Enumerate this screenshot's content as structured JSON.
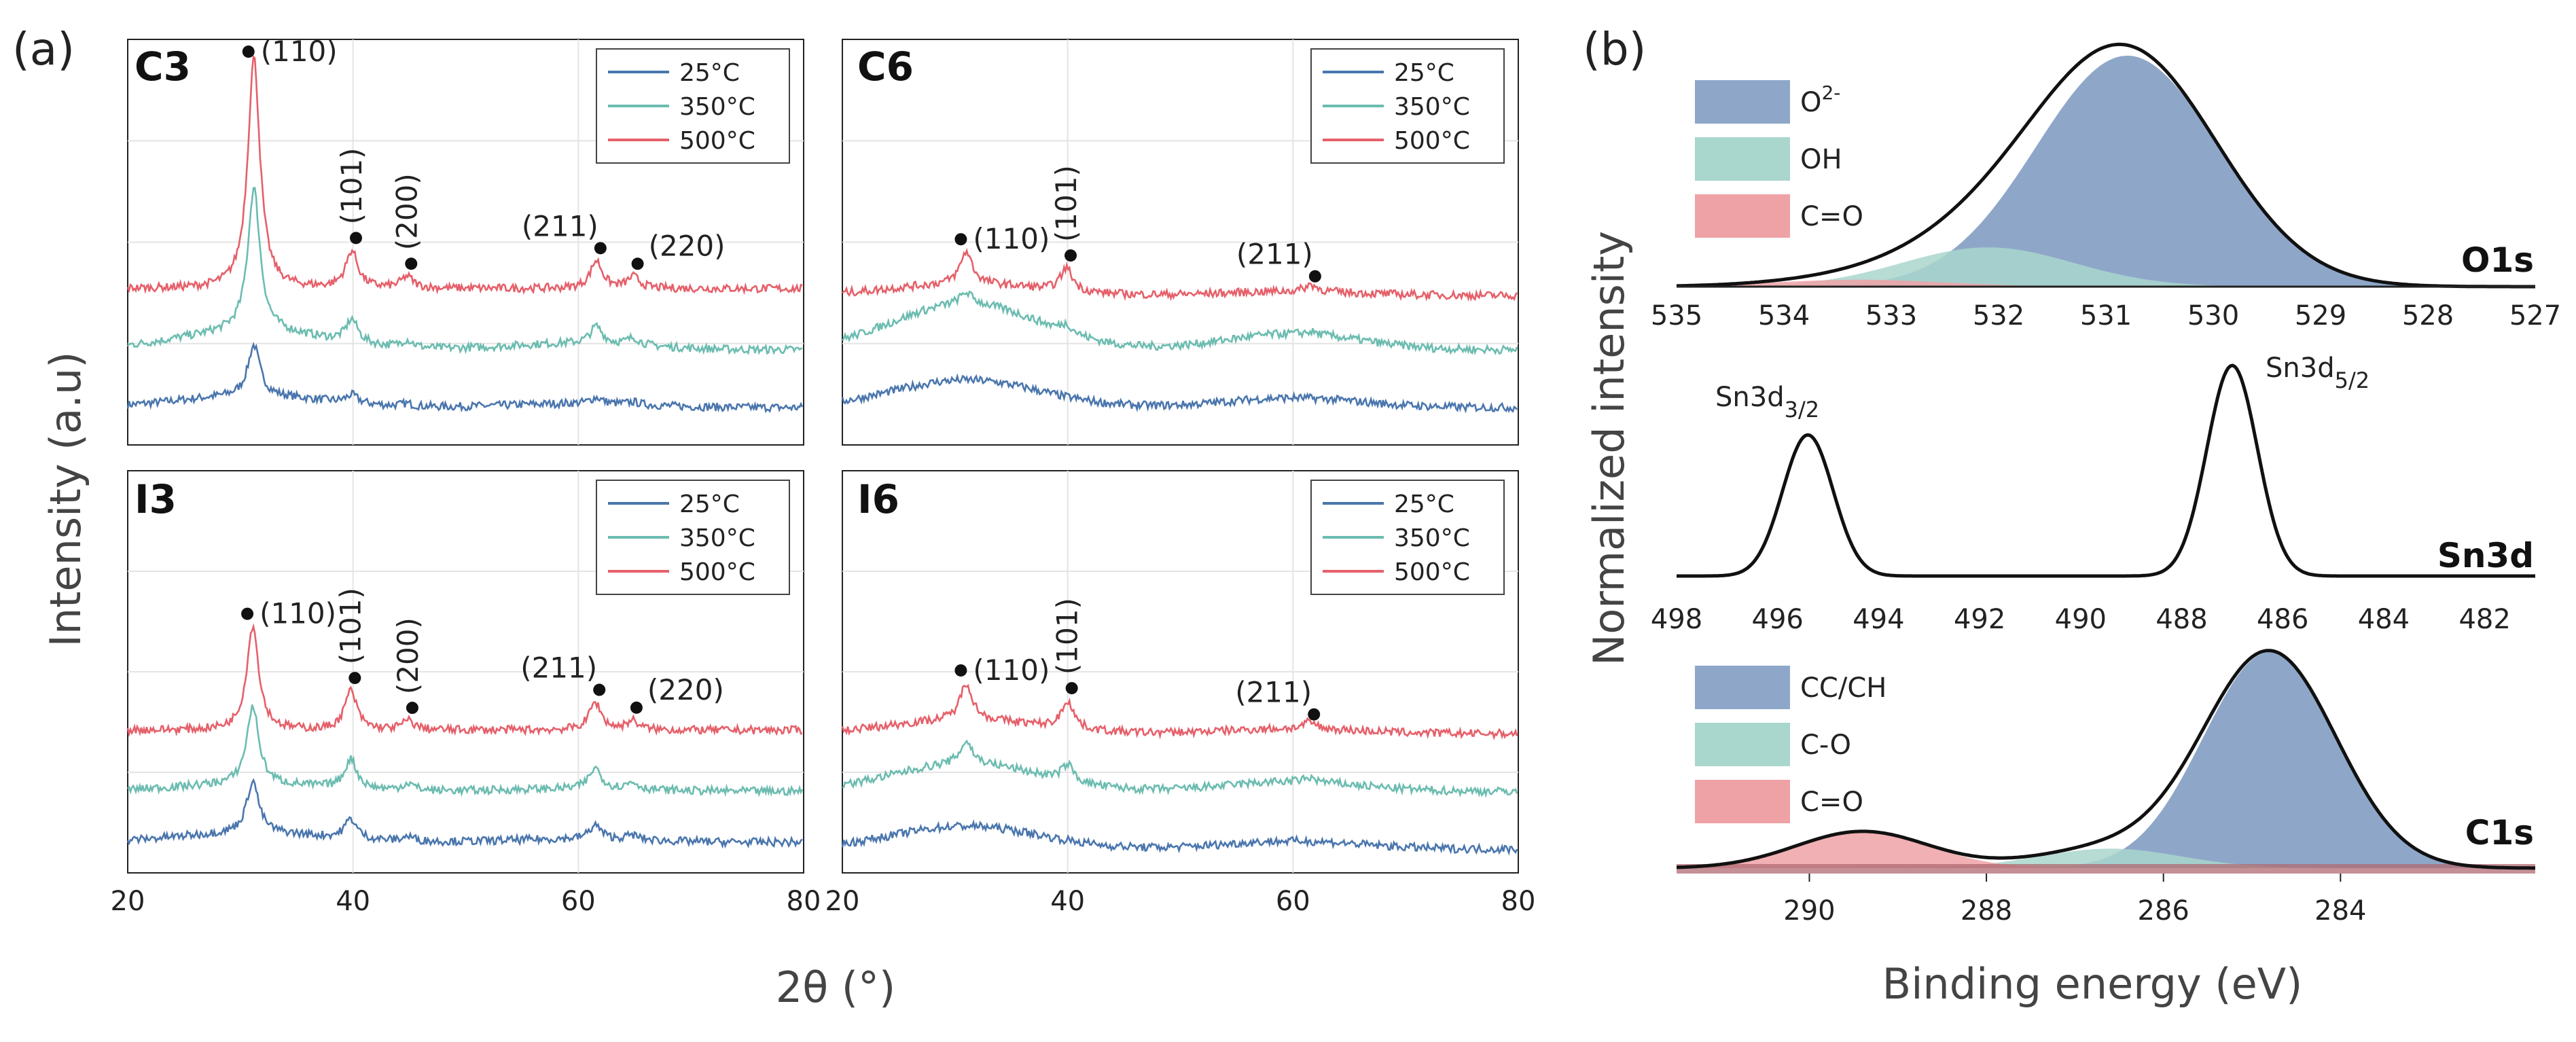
{
  "figure": {
    "panel_a_label": "(a)",
    "panel_b_label": "(b)",
    "xrd_xlabel": "2θ (°)",
    "xrd_ylabel": "Intensity (a.u)",
    "xps_xlabel": "Binding energy (eV)",
    "xps_ylabel": "Normalized intensity"
  },
  "colors": {
    "c25": "#4a76ad",
    "c350": "#6cbcb0",
    "c500": "#e5606a",
    "xps_blue": "#8ea7c9",
    "xps_teal": "#a9d6cd",
    "xps_red": "#eea2a6"
  },
  "chart_data": [
    {
      "type": "line",
      "id": "C3",
      "title": "C3",
      "xlim": [
        20,
        80
      ],
      "xticks": [
        20,
        40,
        60,
        80
      ],
      "legend": [
        "25°C",
        "350°C",
        "500°C"
      ],
      "legend_position": "top-right",
      "peaks": [
        {
          "hkl": "(110)",
          "x": 31.2,
          "height": 1.0
        },
        {
          "hkl": "(101)",
          "x": 39.9,
          "height": 0.16
        },
        {
          "hkl": "(200)",
          "x": 44.8,
          "height": 0.05
        },
        {
          "hkl": "(211)",
          "x": 61.6,
          "height": 0.12
        },
        {
          "hkl": "(220)",
          "x": 64.9,
          "height": 0.05
        }
      ],
      "series_scale": [
        0.22,
        0.62,
        1.0
      ],
      "broad_hump": [
        0.05,
        0.08,
        0.0
      ]
    },
    {
      "type": "line",
      "id": "C6",
      "title": "C6",
      "xlim": [
        20,
        80
      ],
      "xticks": [
        20,
        40,
        60,
        80
      ],
      "legend": [
        "25°C",
        "350°C",
        "500°C"
      ],
      "legend_position": "top-right",
      "peaks": [
        {
          "hkl": "(110)",
          "x": 31.0,
          "height": 0.14
        },
        {
          "hkl": "(101)",
          "x": 39.9,
          "height": 0.1
        },
        {
          "hkl": "(211)",
          "x": 61.6,
          "height": 0.03
        }
      ],
      "series_scale": [
        0.0,
        0.35,
        1.0
      ],
      "broad_hump": [
        0.12,
        0.2,
        0.05
      ]
    },
    {
      "type": "line",
      "id": "I3",
      "title": "I3",
      "xlim": [
        20,
        80
      ],
      "xticks": [
        20,
        40,
        60,
        80
      ],
      "legend": [
        "25°C",
        "350°C",
        "500°C"
      ],
      "legend_position": "top-right",
      "peaks": [
        {
          "hkl": "(110)",
          "x": 31.1,
          "height": 0.45
        },
        {
          "hkl": "(101)",
          "x": 39.8,
          "height": 0.17
        },
        {
          "hkl": "(200)",
          "x": 44.9,
          "height": 0.04
        },
        {
          "hkl": "(211)",
          "x": 61.5,
          "height": 0.12
        },
        {
          "hkl": "(220)",
          "x": 64.8,
          "height": 0.04
        }
      ],
      "series_scale": [
        0.5,
        0.75,
        1.0
      ],
      "broad_hump": [
        0.04,
        0.03,
        0.0
      ]
    },
    {
      "type": "line",
      "id": "I6",
      "title": "I6",
      "xlim": [
        20,
        80
      ],
      "xticks": [
        20,
        40,
        60,
        80
      ],
      "legend": [
        "25°C",
        "350°C",
        "500°C"
      ],
      "legend_position": "top-right",
      "peaks": [
        {
          "hkl": "(110)",
          "x": 31.0,
          "height": 0.16
        },
        {
          "hkl": "(101)",
          "x": 40.0,
          "height": 0.12
        },
        {
          "hkl": "(211)",
          "x": 61.5,
          "height": 0.03
        }
      ],
      "series_scale": [
        0.0,
        0.6,
        1.0
      ],
      "broad_hump": [
        0.1,
        0.12,
        0.06
      ]
    },
    {
      "type": "area",
      "id": "O1s",
      "title": "O1s",
      "xlim": [
        535,
        527
      ],
      "xticks": [
        535,
        534,
        533,
        532,
        531,
        530,
        529,
        528,
        527
      ],
      "legend": [
        "O2-",
        "OH",
        "C=O"
      ],
      "components": [
        {
          "name": "O2-",
          "center": 530.8,
          "sigma": 0.85,
          "amplitude": 1.0
        },
        {
          "name": "OH",
          "center": 532.1,
          "sigma": 0.8,
          "amplitude": 0.17
        },
        {
          "name": "C=O",
          "center": 533.3,
          "sigma": 0.8,
          "amplitude": 0.03
        }
      ]
    },
    {
      "type": "line",
      "id": "Sn3d",
      "title": "Sn3d",
      "xlim": [
        498,
        481
      ],
      "xticks": [
        498,
        496,
        494,
        492,
        490,
        488,
        486,
        484,
        482
      ],
      "peaks": [
        {
          "label": "Sn3d",
          "label_sub": "3/2",
          "center": 495.4,
          "sigma": 0.5,
          "amplitude": 0.67
        },
        {
          "label": "Sn3d",
          "label_sub": "5/2",
          "center": 487.0,
          "sigma": 0.5,
          "amplitude": 1.0
        }
      ]
    },
    {
      "type": "area",
      "id": "C1s",
      "title": "C1s",
      "xlim": [
        291.5,
        281.8
      ],
      "xticks": [
        290,
        288,
        286,
        284
      ],
      "legend": [
        "CC/CH",
        "C-O",
        "C=O"
      ],
      "components": [
        {
          "name": "CC/CH",
          "center": 284.8,
          "sigma": 0.75,
          "amplitude": 1.0
        },
        {
          "name": "C-O",
          "center": 286.6,
          "sigma": 0.8,
          "amplitude": 0.09
        },
        {
          "name": "C=O",
          "center": 289.4,
          "sigma": 0.75,
          "amplitude": 0.17
        }
      ]
    }
  ]
}
